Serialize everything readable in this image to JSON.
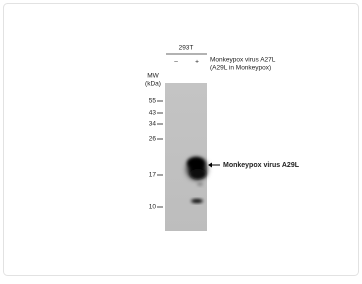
{
  "header": {
    "cell_line": "293T",
    "lanes": [
      "–",
      "+"
    ],
    "construct": "Monkeypox virus A27L",
    "construct_note": "(A29L in Monkeypox)"
  },
  "marker": {
    "title": "MW",
    "unit": "(kDa)",
    "sizes": [
      55,
      43,
      34,
      26,
      17,
      10
    ]
  },
  "band_label": "Monkeypox virus A29L"
}
